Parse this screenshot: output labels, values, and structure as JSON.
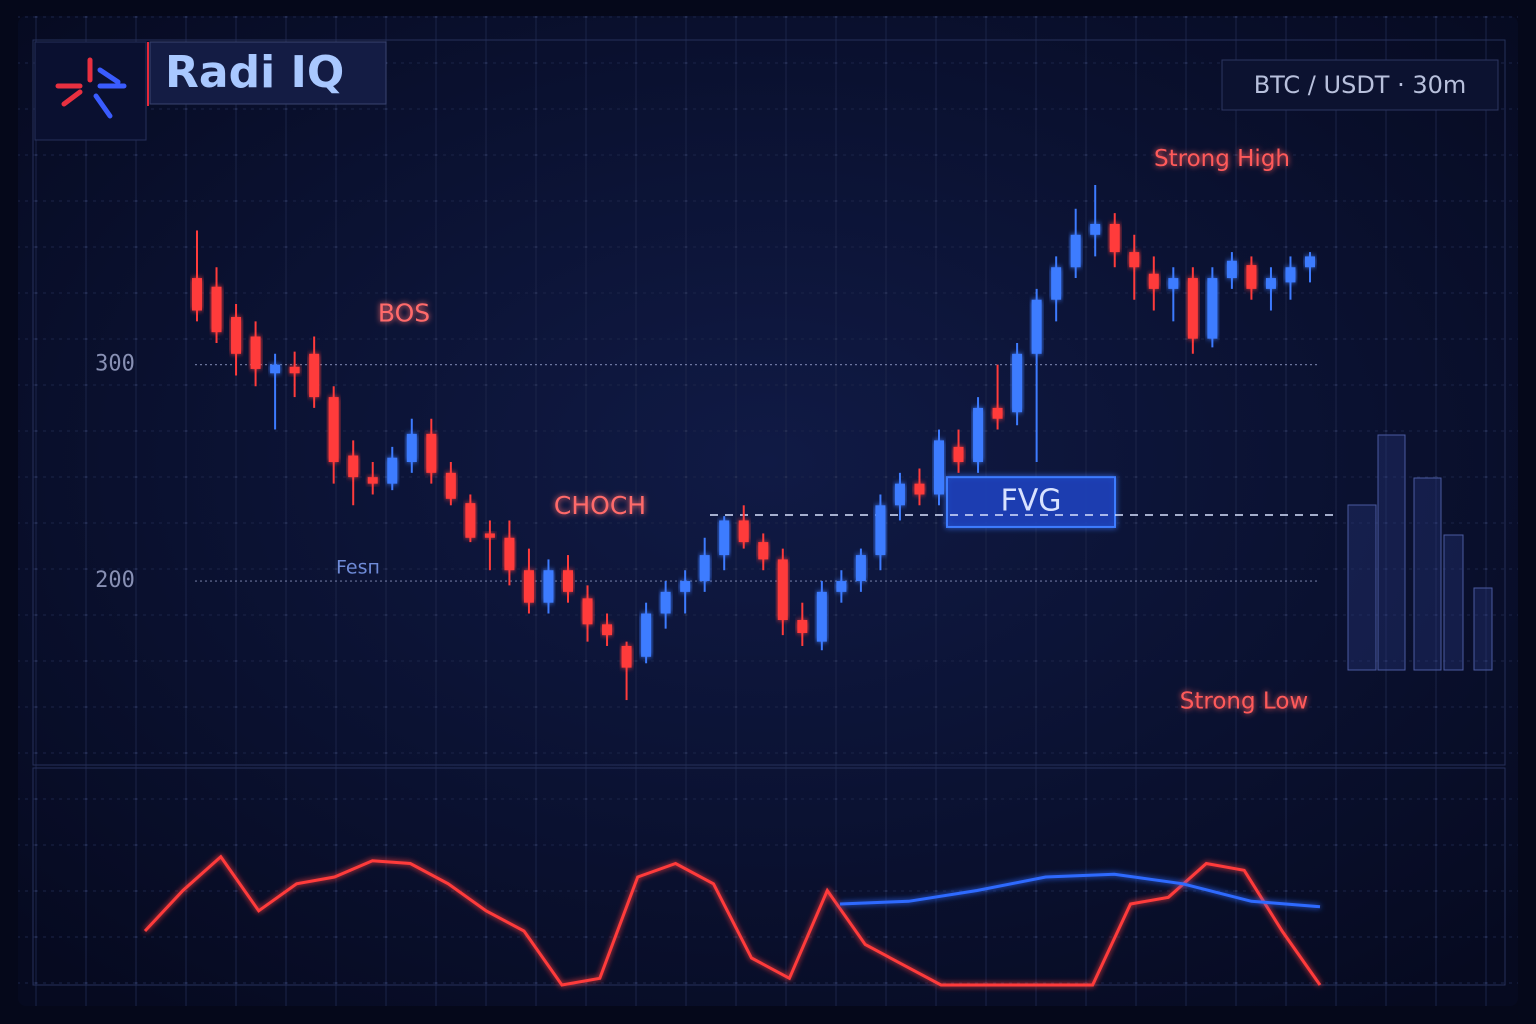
{
  "header": {
    "title": "Radi IQ",
    "pair": "BTC / USDT · 30m"
  },
  "chart_data": {
    "type": "candlestick",
    "ylim": [
      115,
      450
    ],
    "yticks": [
      200,
      300
    ],
    "grid": true,
    "up_color": "#3d7bff",
    "down_color": "#ff3b3b",
    "candles": {
      "open": [
        340,
        336,
        322,
        313,
        296,
        299,
        305,
        285,
        258,
        248,
        245,
        255,
        268,
        250,
        236,
        222,
        220,
        205,
        190,
        205,
        192,
        180,
        170,
        165,
        185,
        195,
        200,
        212,
        228,
        218,
        210,
        182,
        172,
        195,
        200,
        212,
        235,
        245,
        240,
        262,
        255,
        280,
        278,
        305,
        330,
        345,
        360,
        365,
        352,
        342,
        335,
        340,
        312,
        340,
        346,
        335,
        338,
        345
      ],
      "high": [
        362,
        345,
        328,
        320,
        305,
        306,
        313,
        290,
        265,
        255,
        262,
        275,
        275,
        255,
        240,
        228,
        228,
        215,
        210,
        212,
        198,
        185,
        172,
        190,
        200,
        205,
        220,
        230,
        235,
        222,
        215,
        190,
        200,
        205,
        215,
        240,
        250,
        252,
        270,
        270,
        285,
        300,
        310,
        335,
        350,
        372,
        383,
        370,
        360,
        350,
        345,
        345,
        345,
        352,
        350,
        345,
        350,
        352
      ],
      "low": [
        320,
        310,
        295,
        290,
        270,
        285,
        280,
        245,
        235,
        240,
        242,
        250,
        245,
        235,
        218,
        205,
        198,
        185,
        185,
        190,
        172,
        170,
        145,
        162,
        178,
        185,
        195,
        205,
        215,
        205,
        175,
        170,
        168,
        190,
        195,
        205,
        228,
        235,
        235,
        250,
        250,
        270,
        272,
        255,
        320,
        340,
        350,
        345,
        330,
        325,
        320,
        305,
        308,
        335,
        330,
        325,
        330,
        338
      ],
      "close": [
        325,
        315,
        305,
        298,
        300,
        296,
        285,
        255,
        248,
        245,
        257,
        268,
        250,
        238,
        220,
        220,
        205,
        190,
        205,
        195,
        180,
        175,
        160,
        185,
        195,
        200,
        212,
        228,
        218,
        210,
        182,
        176,
        195,
        200,
        212,
        235,
        245,
        240,
        265,
        255,
        280,
        275,
        305,
        330,
        345,
        360,
        365,
        352,
        345,
        335,
        340,
        312,
        340,
        348,
        335,
        340,
        345,
        350
      ]
    },
    "levels": {
      "strong_high": {
        "label": "Strong High",
        "value": 385
      },
      "strong_low": {
        "label": "Strong Low",
        "value": 157
      },
      "bos": {
        "label": "BOS",
        "value": 313
      },
      "choch": {
        "label": "CHOCH",
        "value": 225
      },
      "fvg": {
        "label": "FVG",
        "values": [
          225,
          248
        ]
      },
      "fesn": {
        "label": "Fesп",
        "value": 218
      }
    },
    "volume": [
      165,
      235,
      192,
      135,
      82
    ],
    "indicator": {
      "ylim": [
        0,
        100
      ],
      "threshold": 33,
      "series": [
        {
          "color": "#ff3b3b",
          "values": [
            40,
            70,
            95,
            55,
            75,
            80,
            92,
            90,
            75,
            55,
            40,
            0,
            5,
            80,
            90,
            75,
            20,
            5,
            70,
            30,
            15,
            0,
            0,
            0,
            0,
            0,
            60,
            65,
            90,
            85,
            40,
            0
          ]
        },
        {
          "color": "#2f6bff",
          "values": [
            60,
            62,
            70,
            80,
            82,
            75,
            62,
            58
          ]
        }
      ]
    }
  }
}
